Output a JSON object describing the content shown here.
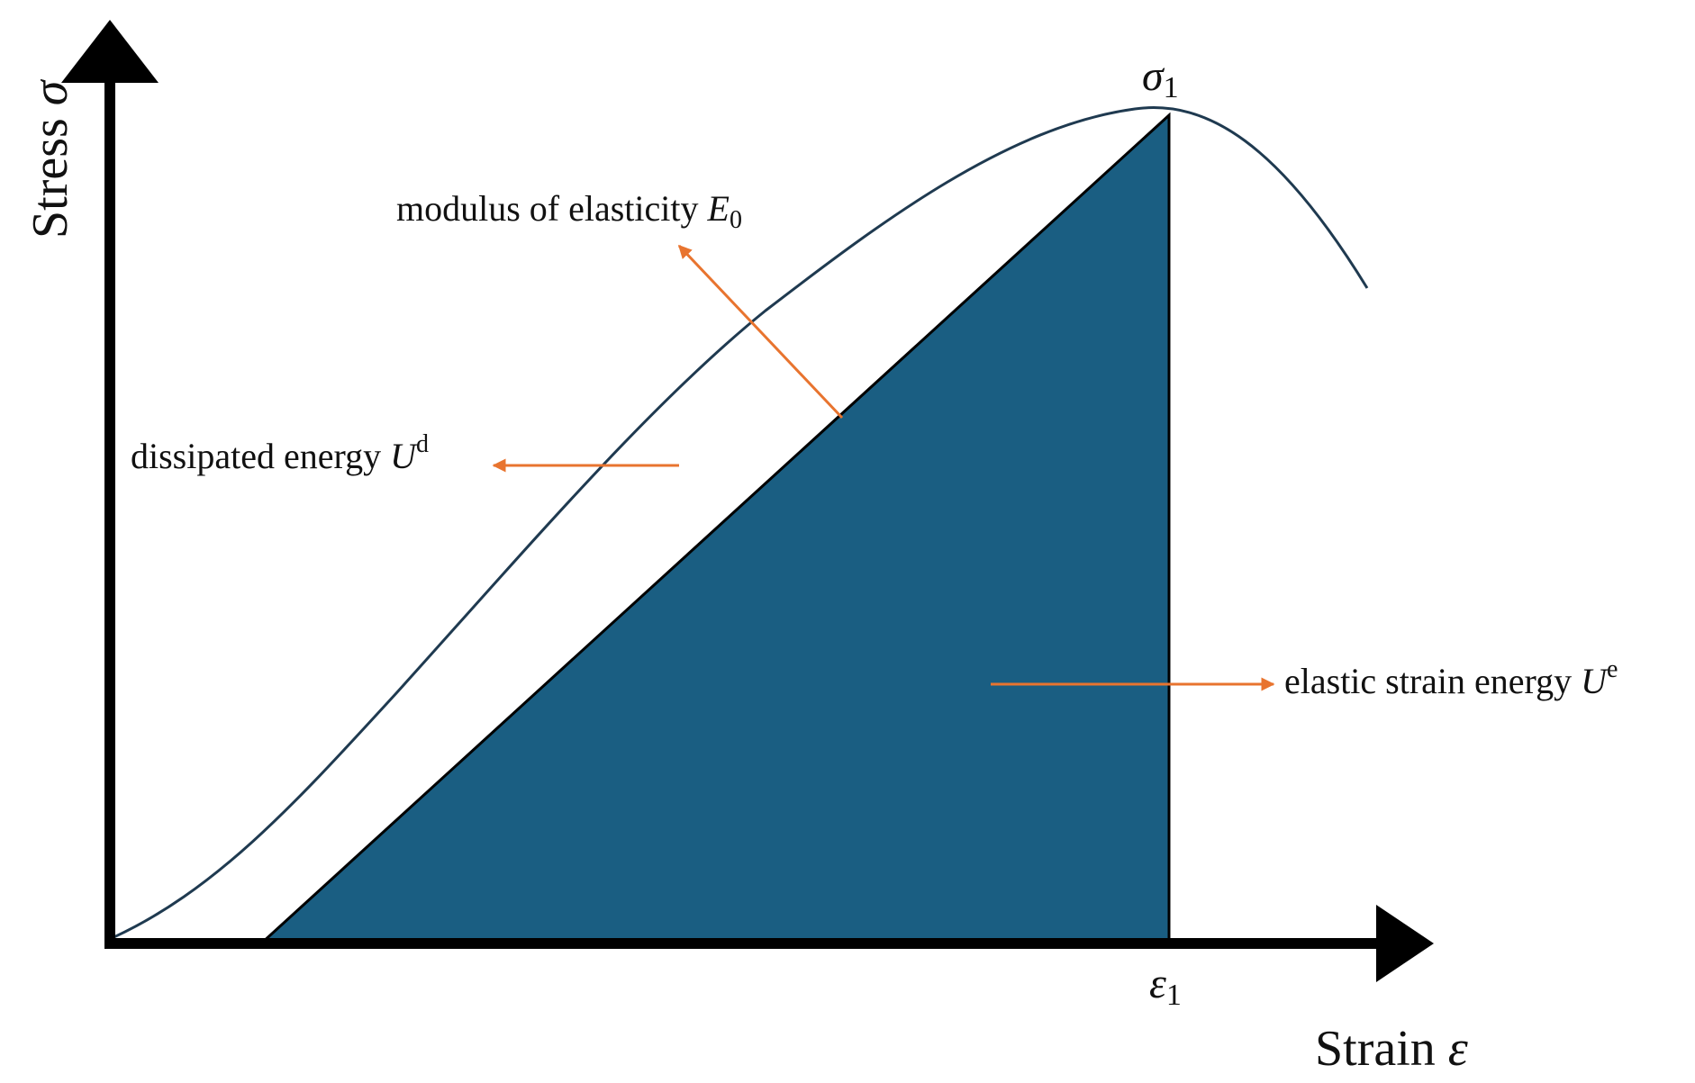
{
  "axes": {
    "y_title": "Stress",
    "y_symbol": "σ",
    "x_title": "Strain",
    "x_symbol": "ε"
  },
  "points": {
    "peak_stress_symbol": "σ",
    "peak_stress_subscript": "1",
    "peak_strain_symbol": "ε",
    "peak_strain_subscript": "1"
  },
  "annotations": {
    "modulus_text": "modulus of elasticity",
    "modulus_symbol": "E",
    "modulus_subscript": "0",
    "dissipated_text": "dissipated energy",
    "dissipated_symbol": "U",
    "dissipated_superscript": "d",
    "elastic_text": "elastic strain energy",
    "elastic_symbol": "U",
    "elastic_superscript": "e"
  },
  "colors": {
    "curve": "#1f3a50",
    "elastic_fill": "#1a5e82",
    "axis": "#000000",
    "arrow": "#e8742f"
  }
}
